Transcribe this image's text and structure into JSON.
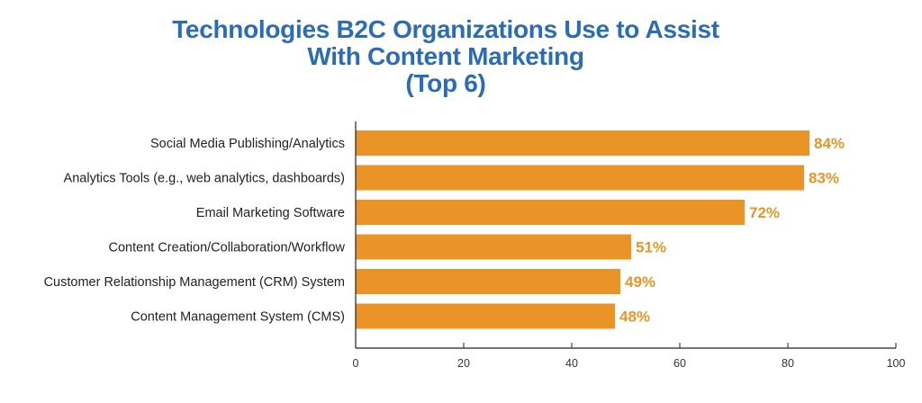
{
  "chart_data": {
    "type": "bar",
    "orientation": "horizontal",
    "title_lines": [
      "Technologies B2C Organizations Use to Assist",
      "With Content Marketing",
      "(Top 6)"
    ],
    "categories": [
      "Social Media Publishing/Analytics",
      "Analytics Tools (e.g., web analytics, dashboards)",
      "Email Marketing Software",
      "Content Creation/Collaboration/Workflow",
      "Customer Relationship Management (CRM) System",
      "Content Management System (CMS)"
    ],
    "values": [
      84,
      83,
      72,
      51,
      49,
      48
    ],
    "value_labels": [
      "84%",
      "83%",
      "72%",
      "51%",
      "49%",
      "48%"
    ],
    "xlim": [
      0,
      100
    ],
    "xticks": [
      0,
      20,
      40,
      60,
      80,
      100
    ],
    "xlabel": "",
    "ylabel": "",
    "grid": false,
    "legend": "none",
    "colors": {
      "bar": "#ea9427",
      "value_label": "#ea9427",
      "title": "#2a6db5",
      "axis": "#222222"
    }
  }
}
